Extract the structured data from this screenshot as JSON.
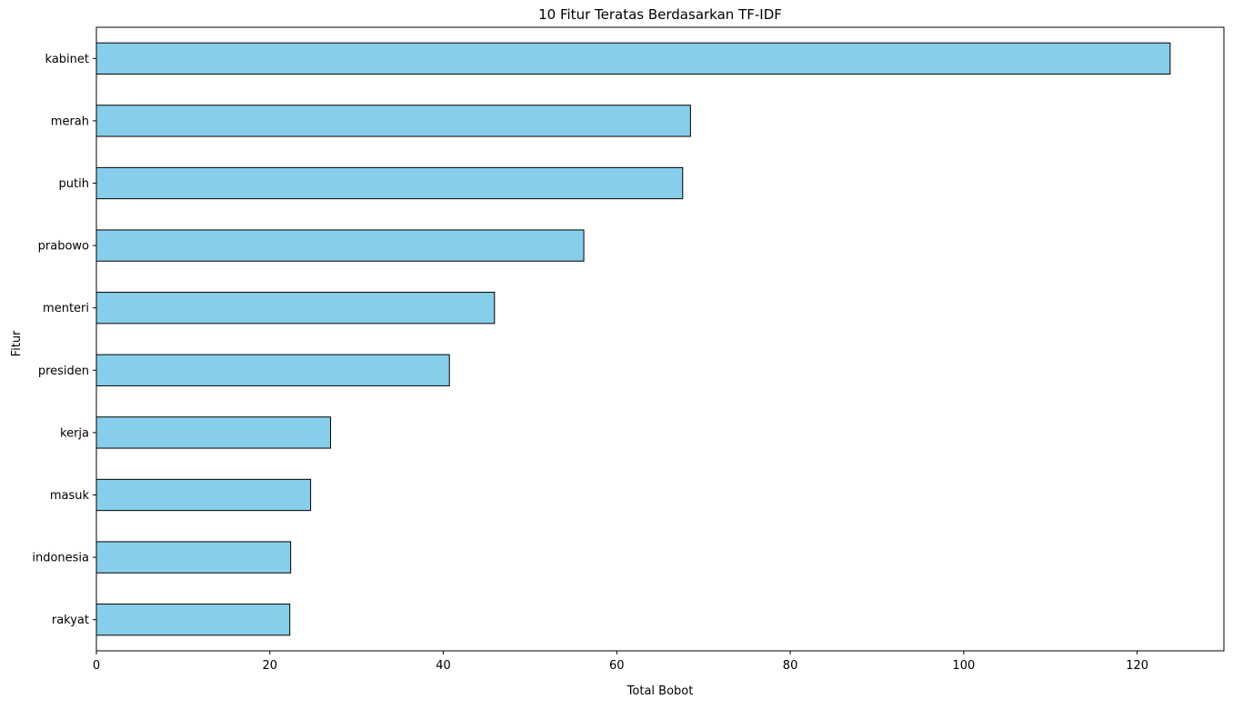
{
  "chart_data": {
    "type": "bar",
    "orientation": "horizontal",
    "title": "10 Fitur Teratas Berdasarkan TF-IDF",
    "xlabel": "Total Bobot",
    "ylabel": "Fitur",
    "categories": [
      "kabinet",
      "merah",
      "putih",
      "prabowo",
      "menteri",
      "presiden",
      "kerja",
      "masuk",
      "indonesia",
      "rakyat"
    ],
    "values": [
      123.8,
      68.5,
      67.6,
      56.2,
      45.9,
      40.7,
      27.0,
      24.7,
      22.4,
      22.3
    ],
    "xlim": [
      0,
      130
    ],
    "xticks": [
      0,
      20,
      40,
      60,
      80,
      100,
      120
    ],
    "grid": false,
    "legend": "none",
    "colors": {
      "bar_fill": "#87CEEB",
      "bar_edge": "#000000",
      "axis": "#000000"
    }
  }
}
